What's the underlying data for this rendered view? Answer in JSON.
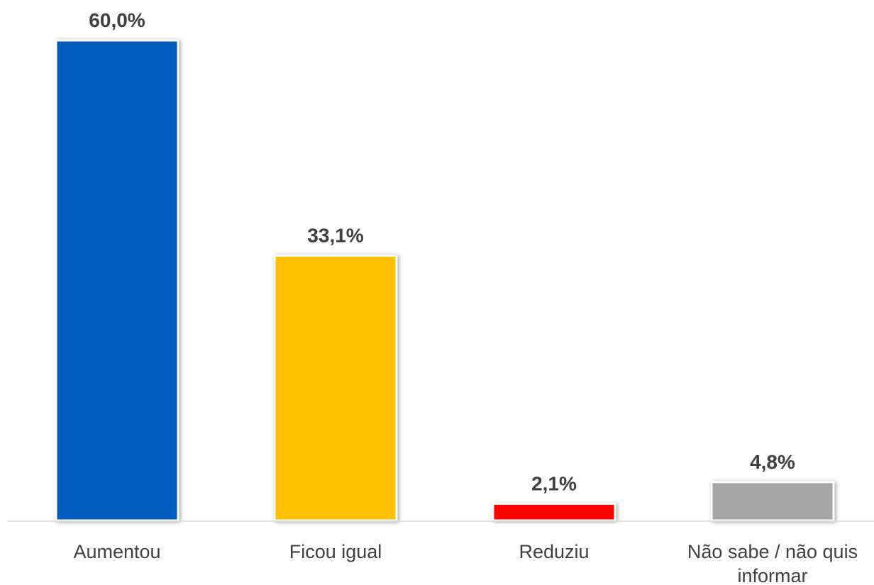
{
  "chart_data": {
    "type": "bar",
    "categories": [
      "Aumentou",
      "Ficou igual",
      "Reduziu",
      "Não sabe / não quis informar"
    ],
    "category_lines": [
      [
        "Aumentou"
      ],
      [
        "Ficou igual"
      ],
      [
        "Reduziu"
      ],
      [
        "Não sabe / não quis",
        "informar"
      ]
    ],
    "values": [
      60.0,
      33.1,
      2.1,
      4.8
    ],
    "value_labels": [
      "60,0%",
      "33,1%",
      "2,1%",
      "4,8%"
    ],
    "colors": [
      "#005BBB",
      "#FFC000",
      "#FF0000",
      "#A6A6A6"
    ],
    "ylim": [
      0,
      60
    ],
    "grid": false,
    "legend": "none"
  }
}
